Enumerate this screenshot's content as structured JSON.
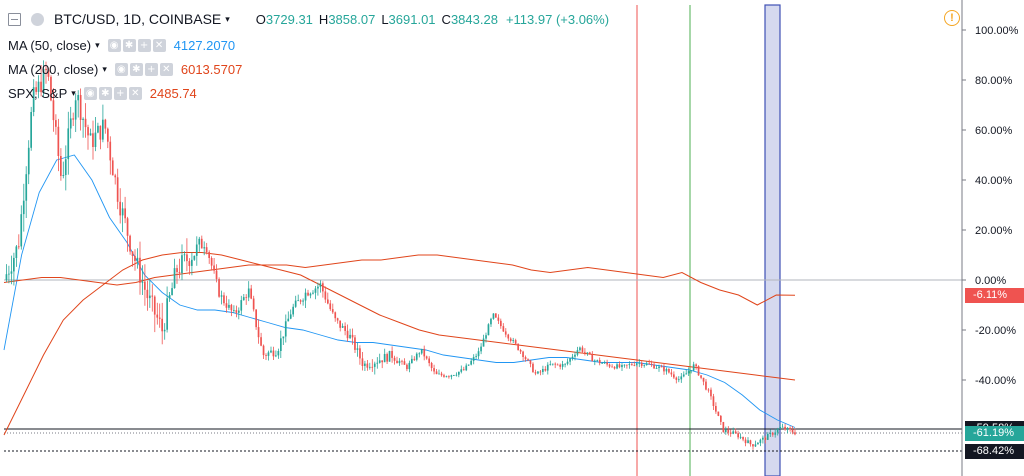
{
  "header": {
    "symbol": "BTC/USD, 1D, COINBASE",
    "open_label": "O",
    "open": "3729.31",
    "high_label": "H",
    "high": "3858.07",
    "low_label": "L",
    "low": "3691.01",
    "close_label": "C",
    "close": "3843.28",
    "change": "+113.97 (+3.06%)"
  },
  "indicators": [
    {
      "name": "MA (50, close)",
      "value": "4127.2070",
      "color": "#2196f3"
    },
    {
      "name": "MA (200, close)",
      "value": "6013.5707",
      "color": "#e0451b"
    },
    {
      "name": "SPX, S&P",
      "value": "2485.74",
      "color": "#e0451b"
    }
  ],
  "icons": {
    "collapse": "collapse-icon",
    "visibility": "eye-icon",
    "settings": "gear-icon",
    "add": "plus-icon",
    "remove": "close-icon",
    "warning": "exclamation-icon"
  },
  "price_tags": [
    {
      "label": "-59.58%",
      "value": -59.58,
      "color": "#131722"
    },
    {
      "label": "-61.19%",
      "value": -61.19,
      "color": "#26a69a"
    },
    {
      "label": "-68.42%",
      "value": -68.42,
      "color": "#131722"
    },
    {
      "label": "-6.11%",
      "value": -6.11,
      "color": "#ef5350"
    }
  ],
  "colors": {
    "up": "#26a69a",
    "down": "#ef5350",
    "ma50": "#2196f3",
    "ma200": "#e0451b",
    "spx": "#e0451b",
    "highlight": "#3f51b5"
  },
  "chart_data": {
    "type": "line",
    "y_axis": {
      "scale": "percent",
      "ticks": [
        100,
        80,
        60,
        40,
        20,
        0,
        -20,
        -40
      ],
      "tick_labels": [
        "100.00%",
        "80.00%",
        "60.00%",
        "40.00%",
        "20.00%",
        "0.00%",
        "-20.00%",
        "-40.00%"
      ],
      "range": [
        -72,
        110
      ],
      "position": "right"
    },
    "grid": false,
    "legend_position": "top-left",
    "series": [
      {
        "name": "BTC/USD, 1D, COINBASE",
        "kind": "candles",
        "close_path": [
          0,
          14,
          72,
          84,
          40,
          75,
          55,
          62,
          32,
          10,
          -7,
          -20,
          4,
          10,
          15,
          -6,
          -14,
          -4,
          -30,
          -28,
          -12,
          -5,
          -2,
          -16,
          -22,
          -34,
          -32,
          -30,
          -35,
          -28,
          -38,
          -38,
          -36,
          -29,
          -14,
          -22,
          -29,
          -38,
          -34,
          -34,
          -27,
          -32,
          -34,
          -35,
          -33,
          -34,
          -36,
          -40,
          -34,
          -45,
          -60,
          -62,
          -66,
          -63,
          -59,
          -61
        ]
      },
      {
        "name": "MA (50, close)",
        "values": [
          -28,
          10,
          35,
          48,
          50,
          40,
          25,
          15,
          2,
          -5,
          -10,
          -12,
          -12,
          -13,
          -15,
          -17,
          -19,
          -20,
          -22,
          -24,
          -25,
          -25,
          -26,
          -27,
          -28,
          -30,
          -31,
          -32,
          -33,
          -33,
          -32,
          -31,
          -31,
          -32,
          -33,
          -33,
          -33,
          -34,
          -35,
          -36,
          -38,
          -41,
          -46,
          -52,
          -56,
          -59
        ]
      },
      {
        "name": "MA (200, close)",
        "values": [
          -62,
          -46,
          -30,
          -16,
          -8,
          -2,
          4,
          8,
          10,
          11,
          11,
          10,
          8,
          6,
          4,
          2,
          -2,
          -6,
          -10,
          -14,
          -17,
          -20,
          -22,
          -23,
          -24,
          -25,
          -26,
          -27,
          -28,
          -29,
          -30,
          -31,
          -32,
          -33,
          -34,
          -35,
          -36,
          -37,
          -38,
          -39,
          -40
        ]
      },
      {
        "name": "SPX, S&P",
        "values": [
          -1,
          0,
          1,
          1,
          0,
          -1,
          -2,
          -1,
          1,
          2,
          3,
          4,
          5,
          6,
          6,
          6,
          5,
          6,
          7,
          8,
          8,
          9,
          10,
          10,
          9,
          8,
          7,
          6,
          4,
          3,
          4,
          5,
          4,
          3,
          2,
          1,
          3,
          -1,
          -4,
          -6,
          -10,
          -6,
          -6.11
        ]
      }
    ],
    "vertical_markers": [
      "red",
      "green"
    ],
    "highlight_band": true,
    "horizontal_levels": [
      -59.58,
      -61.19,
      -68.42
    ]
  }
}
